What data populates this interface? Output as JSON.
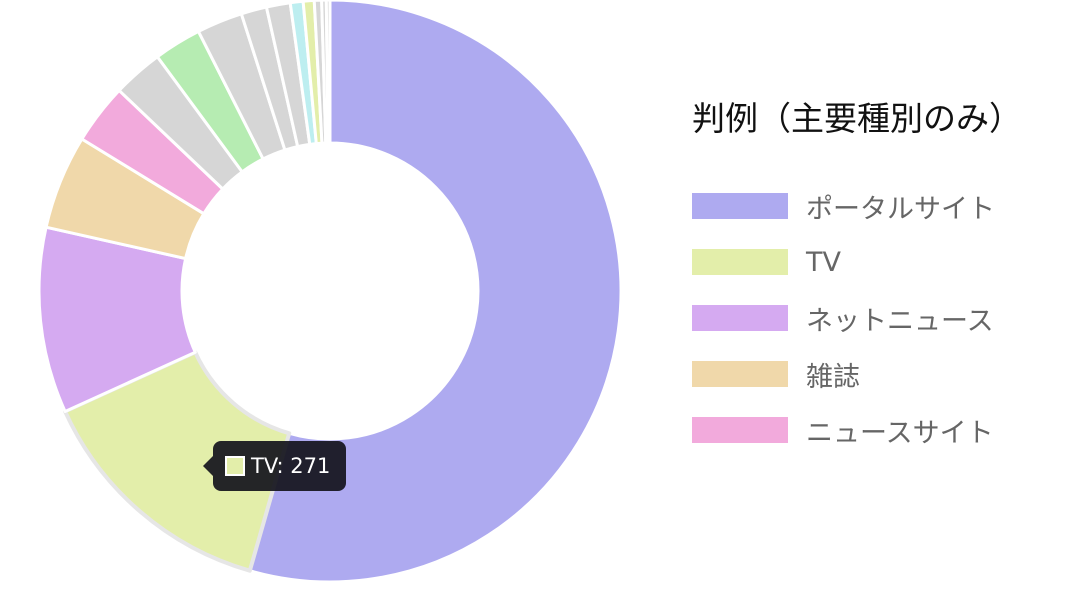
{
  "legend": {
    "title": "判例（主要種別のみ）",
    "items": [
      {
        "label": "ポータルサイト",
        "color": "#aeaaf0"
      },
      {
        "label": "TV",
        "color": "#e3eeaa"
      },
      {
        "label": "ネットニュース",
        "color": "#d5aaf1"
      },
      {
        "label": "雑誌",
        "color": "#f0d8aa"
      },
      {
        "label": "ニュースサイト",
        "color": "#f2aadc"
      }
    ]
  },
  "tooltip": {
    "text": "TV: 271",
    "color": "#e3eeaa"
  },
  "chart_data": {
    "type": "pie",
    "variant": "doughnut",
    "legend_position": "right",
    "categories": [
      "ポータルサイト",
      "TV",
      "ネットニュース",
      "雑誌",
      "ニュースサイト",
      "",
      "",
      "",
      "",
      "",
      "",
      "",
      "",
      "",
      ""
    ],
    "values": [
      1072,
      271,
      203,
      103,
      66,
      55,
      52,
      50,
      28,
      26,
      14,
      12,
      8,
      5,
      4
    ],
    "colors": [
      "#aeaaf0",
      "#e3eeaa",
      "#d5aaf1",
      "#f0d8aa",
      "#f2aadc",
      "#d6d6d6",
      "#b6ecb2",
      "#d6d6d6",
      "#d6d6d6",
      "#d6d6d6",
      "#bdeef0",
      "#e3eeaa",
      "#d6d6d6",
      "#d6d6d6",
      "#d6d6d6"
    ],
    "highlighted_index": 1
  }
}
